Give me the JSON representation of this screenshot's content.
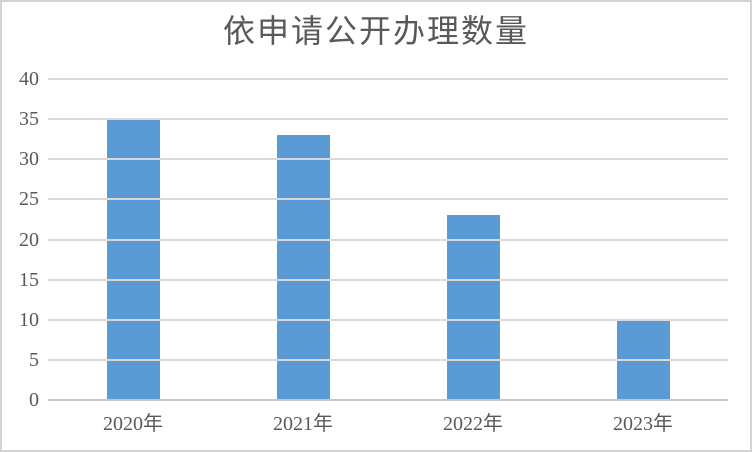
{
  "chart": {
    "title": "依申请公开办理数量",
    "colors": {
      "bar": "#5b9bd5",
      "gridline": "#d9d9d9",
      "axis_line": "#c6c6c6",
      "text": "#595959",
      "frame_border": "#d3d3d3",
      "background": "#ffffff"
    }
  },
  "chart_data": {
    "type": "bar",
    "title": "依申请公开办理数量",
    "categories": [
      "2020年",
      "2021年",
      "2022年",
      "2023年"
    ],
    "values": [
      35,
      33,
      23,
      10
    ],
    "xlabel": "",
    "ylabel": "",
    "ylim": [
      0,
      40
    ],
    "yticks": [
      0,
      5,
      10,
      15,
      20,
      25,
      30,
      35,
      40
    ],
    "grid": true,
    "legend": false,
    "bar_color": "#5b9bd5"
  }
}
